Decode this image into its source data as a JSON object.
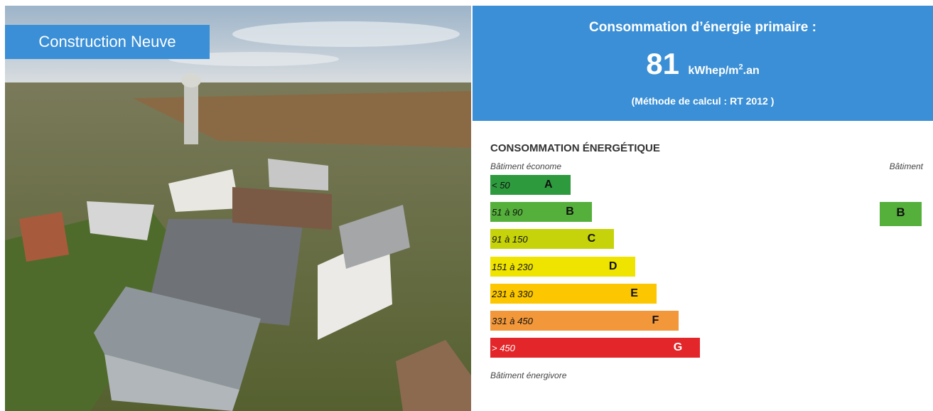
{
  "photo": {
    "badge": "Construction Neuve"
  },
  "header": {
    "title": "Consommation d’énergie primaire :",
    "value": "81",
    "unit_main": "kWhep/m",
    "unit_sup": "2",
    "unit_end": ".an",
    "method": "(Méthode de calcul : RT 2012 )"
  },
  "label": {
    "title": "CONSOMMATION ÉNERGÉTIQUE",
    "top_left": "Bâtiment économe",
    "top_right": "Bâtiment",
    "bottom": "Bâtiment énergivore",
    "classes": [
      {
        "range": "< 50",
        "letter": "A",
        "color": "#2e9a3e"
      },
      {
        "range": "51 à 90",
        "letter": "B",
        "color": "#55b03b"
      },
      {
        "range": "91 à 150",
        "letter": "C",
        "color": "#c6d30a"
      },
      {
        "range": "151 à 230",
        "letter": "D",
        "color": "#efe400"
      },
      {
        "range": "231 à 330",
        "letter": "E",
        "color": "#fcc700"
      },
      {
        "range": "331 à 450",
        "letter": "F",
        "color": "#f2983a"
      },
      {
        "range": "> 450",
        "letter": "G",
        "color": "#e3262a"
      }
    ],
    "current": "B"
  }
}
